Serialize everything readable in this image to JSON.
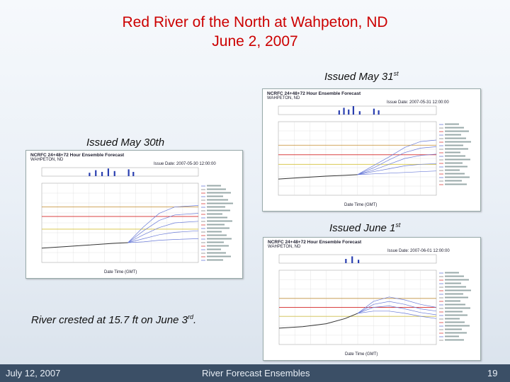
{
  "slide": {
    "title_line1": "Red River of the North at Wahpeton, ND",
    "title_line2": "June 2, 2007",
    "label_may31": "Issued May 31",
    "label_may31_sup": "st",
    "label_may30": "Issued May 30th",
    "label_june1": "Issued June 1",
    "label_june1_sup": "st",
    "crest_text": "River crested at 15.7 ft on June 3",
    "crest_sup": "rd",
    "crest_tail": "."
  },
  "footer": {
    "date": "July 12, 2007",
    "title": "River Forecast Ensembles",
    "page": "19"
  },
  "forecasts": [
    {
      "name": "may31",
      "heading": "NCRFC 24+48+72 Hour Ensemble Forecast",
      "subheading": "WAHPETON, ND",
      "issue": "Issue Date: 2007-05-31 12:00:00",
      "axis_label": "Date Time (GMT)"
    },
    {
      "name": "may30",
      "heading": "NCRFC 24+48+72 Hour Ensemble Forecast",
      "subheading": "WAHPETON, ND",
      "issue": "Issue Date: 2007-05-30 12:00:00",
      "axis_label": "Date Time (GMT)"
    },
    {
      "name": "june1",
      "heading": "NCRFC 24+48+72 Hour Ensemble Forecast",
      "subheading": "WAHPETON, ND",
      "issue": "Issue Date: 2007-06-01 12:00:00",
      "axis_label": "Date Time (GMT)"
    }
  ],
  "colors": {
    "title": "#cc0000",
    "footer_bg": "#3b4f66",
    "flood_line": "#d94040",
    "moderate_line": "#c28a2a",
    "action_line": "#d4c23a",
    "ensemble": "#6a7bd8",
    "observed": "#333333",
    "precip": "#2a3fb0"
  }
}
